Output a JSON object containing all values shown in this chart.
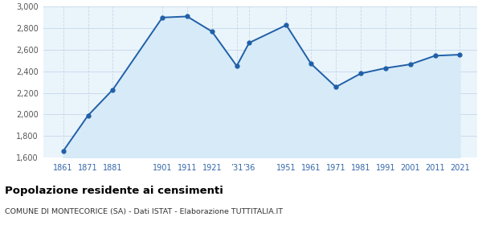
{
  "years": [
    1861,
    1871,
    1881,
    1901,
    1911,
    1921,
    1931,
    1936,
    1951,
    1961,
    1971,
    1981,
    1991,
    2001,
    2011,
    2021
  ],
  "population": [
    1660,
    1990,
    2230,
    2900,
    2910,
    2770,
    2450,
    2665,
    2830,
    2470,
    2255,
    2380,
    2430,
    2465,
    2545,
    2555
  ],
  "x_labels_map": {
    "1861": "1861",
    "1871": "1871",
    "1881": "1881",
    "1901": "1901",
    "1911": "1911",
    "1921": "1921",
    "1931": "’31",
    "1936": "’36",
    "1951": "1951",
    "1961": "1961",
    "1971": "1971",
    "1981": "1981",
    "1991": "1991",
    "2001": "2001",
    "2011": "2011",
    "2021": "2021"
  },
  "line_color": "#2060a8",
  "fill_color": "#d6eaf8",
  "marker_color": "#2060a8",
  "bg_color": "#eaf4fb",
  "grid_color_h": "#c5d8ea",
  "grid_color_v": "#c5d8ea",
  "title": "Popolazione residente ai censimenti",
  "subtitle": "COMUNE DI MONTECORICE (SA) - Dati ISTAT - Elaborazione TUTTITALIA.IT",
  "ylim": [
    1600,
    3000
  ],
  "yticks": [
    1600,
    1800,
    2000,
    2200,
    2400,
    2600,
    2800,
    3000
  ],
  "xlim_left": 1853,
  "xlim_right": 2028
}
